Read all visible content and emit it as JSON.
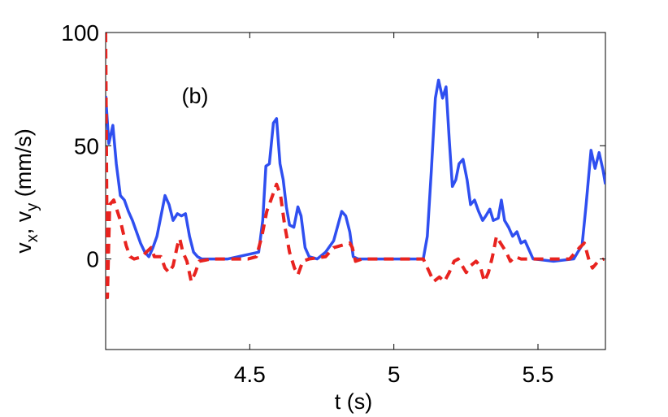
{
  "chart_data": {
    "type": "line",
    "annotation": "(b)",
    "xlabel": "t (s)",
    "ylabel": [
      "v",
      "x",
      ", v",
      "y",
      " (mm/s)"
    ],
    "xlim": [
      4.0,
      5.734
    ],
    "ylim": [
      -40,
      100
    ],
    "xticks": [
      4.5,
      5,
      5.5
    ],
    "yticks": [
      0,
      50,
      100
    ],
    "grid": false,
    "series": [
      {
        "color": "#2f4ff0",
        "dashed": false,
        "x": [
          4.0,
          4.011,
          4.025,
          4.037,
          4.051,
          4.065,
          4.079,
          4.093,
          4.107,
          4.121,
          4.136,
          4.15,
          4.164,
          4.178,
          4.192,
          4.206,
          4.22,
          4.234,
          4.249,
          4.263,
          4.277,
          4.291,
          4.305,
          4.319,
          4.333,
          4.424,
          4.531,
          4.545,
          4.556,
          4.568,
          4.582,
          4.593,
          4.605,
          4.616,
          4.627,
          4.638,
          4.653,
          4.667,
          4.678,
          4.692,
          4.706,
          4.734,
          4.763,
          4.791,
          4.819,
          4.833,
          4.847,
          4.859,
          4.876,
          5.102,
          5.116,
          5.13,
          5.144,
          5.155,
          5.169,
          5.181,
          5.192,
          5.203,
          5.215,
          5.226,
          5.24,
          5.254,
          5.266,
          5.28,
          5.294,
          5.308,
          5.319,
          5.333,
          5.345,
          5.362,
          5.373,
          5.384,
          5.398,
          5.412,
          5.427,
          5.441,
          5.455,
          5.469,
          5.483,
          5.554,
          5.624,
          5.638,
          5.653,
          5.667,
          5.684,
          5.698,
          5.712,
          5.726,
          5.734
        ],
        "values": [
          72,
          51,
          59,
          42,
          28,
          26,
          21,
          17,
          12,
          7,
          3,
          1,
          5,
          10,
          19,
          28,
          24,
          17,
          20,
          19,
          20,
          10,
          3,
          1,
          0,
          0,
          3,
          17,
          41,
          42,
          60,
          62,
          42,
          35,
          23,
          15,
          14,
          23,
          19,
          5,
          1,
          0,
          3,
          8,
          21,
          19,
          12,
          1,
          0,
          0,
          10,
          39,
          71,
          79,
          71,
          76,
          53,
          32,
          35,
          42,
          44,
          35,
          24,
          26,
          21,
          17,
          19,
          22,
          17,
          18,
          26,
          17,
          14,
          10,
          12,
          7,
          8,
          4,
          0,
          -1,
          0,
          3,
          6,
          24,
          48,
          40,
          47,
          39,
          33
        ]
      },
      {
        "color": "#e8231f",
        "dashed": true,
        "x": [
          4.0,
          4.006,
          4.014,
          4.028,
          4.051,
          4.071,
          4.085,
          4.099,
          4.127,
          4.141,
          4.158,
          4.169,
          4.192,
          4.206,
          4.22,
          4.234,
          4.249,
          4.257,
          4.268,
          4.282,
          4.297,
          4.311,
          4.325,
          4.367,
          4.494,
          4.523,
          4.542,
          4.559,
          4.579,
          4.593,
          4.607,
          4.621,
          4.638,
          4.655,
          4.667,
          4.684,
          4.706,
          4.763,
          4.791,
          4.819,
          4.847,
          4.856,
          4.867,
          4.89,
          5.102,
          5.124,
          5.138,
          5.158,
          5.175,
          5.192,
          5.209,
          5.223,
          5.237,
          5.251,
          5.266,
          5.285,
          5.299,
          5.314,
          5.328,
          5.342,
          5.356,
          5.37,
          5.39,
          5.404,
          5.421,
          5.441,
          5.61,
          5.644,
          5.661,
          5.678,
          5.689,
          5.709,
          5.729
        ],
        "values": [
          100,
          -17,
          24,
          26,
          17,
          6,
          1,
          0,
          1,
          3,
          5,
          1,
          1,
          -4,
          -6,
          -3,
          6,
          9,
          3,
          -1,
          -10,
          -6,
          -1,
          0,
          0,
          1,
          10,
          21,
          28,
          33,
          28,
          15,
          3,
          -4,
          -7,
          -1,
          0,
          1,
          5,
          6,
          7,
          5,
          -1,
          0,
          0,
          -6,
          -10,
          -8,
          -10,
          -6,
          -1,
          0,
          -3,
          -6,
          -3,
          -1,
          -3,
          -10,
          -6,
          1,
          10,
          7,
          3,
          -1,
          1,
          0,
          0,
          5,
          7,
          -1,
          -4,
          -1,
          0
        ]
      }
    ]
  }
}
